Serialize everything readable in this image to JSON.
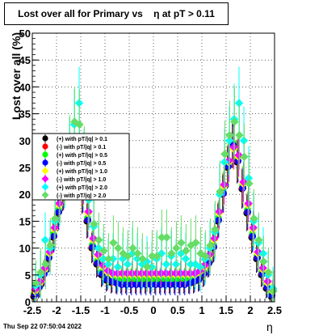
{
  "title": "Lost over all for Primary vs    η at pT > 0.11",
  "footer_date": "Thu Sep 22 07:50:04 2022",
  "chart_data": {
    "type": "scatter",
    "title": "Lost over all for Primary vs    η at pT > 0.11",
    "xlabel": "η",
    "ylabel": "Lost over all (%)",
    "xlim": [
      -2.5,
      2.5
    ],
    "ylim": [
      0,
      50
    ],
    "xticks": [
      "-2.5",
      "-2",
      "-1.5",
      "-1",
      "-0.5",
      "0",
      "0.5",
      "1",
      "1.5",
      "2",
      "2.5"
    ],
    "yticks": [
      "0",
      "5",
      "10",
      "15",
      "20",
      "25",
      "30",
      "35",
      "40",
      "45",
      "50"
    ],
    "grid": true,
    "legend_position": "upper-left",
    "x": [
      -2.45,
      -2.35,
      -2.25,
      -2.15,
      -2.05,
      -1.95,
      -1.85,
      -1.75,
      -1.65,
      -1.55,
      -1.45,
      -1.35,
      -1.25,
      -1.15,
      -1.05,
      -0.95,
      -0.85,
      -0.75,
      -0.65,
      -0.55,
      -0.45,
      -0.35,
      -0.25,
      -0.15,
      -0.05,
      0.05,
      0.15,
      0.25,
      0.35,
      0.45,
      0.55,
      0.65,
      0.75,
      0.85,
      0.95,
      1.05,
      1.15,
      1.25,
      1.35,
      1.45,
      1.55,
      1.65,
      1.75,
      1.85,
      1.95,
      2.05,
      2.15,
      2.25,
      2.35,
      2.45
    ],
    "series": [
      {
        "name": "(+) with pT/|q| > 0.1",
        "color": "#000000",
        "marker": "circle",
        "values": [
          1.0,
          2.5,
          5.0,
          8.0,
          12.0,
          16.5,
          20.5,
          24.0,
          25.5,
          24.5,
          20.0,
          15.0,
          10.0,
          7.0,
          5.0,
          4.0,
          3.6,
          3.6,
          3.6,
          3.6,
          3.6,
          3.6,
          3.6,
          3.6,
          3.6,
          3.6,
          3.6,
          3.6,
          3.6,
          3.6,
          3.6,
          3.6,
          3.6,
          3.6,
          4.0,
          5.0,
          7.0,
          10.0,
          15.0,
          20.0,
          25.0,
          29.0,
          26.0,
          21.0,
          16.5,
          12.0,
          8.0,
          5.0,
          2.5,
          1.0
        ]
      },
      {
        "name": "(-) with pT/|q| > 0.1",
        "color": "#ff0000",
        "marker": "circle",
        "values": [
          1.3,
          2.8,
          5.3,
          8.3,
          12.3,
          16.8,
          20.8,
          24.3,
          25.8,
          24.8,
          20.3,
          15.3,
          10.3,
          7.3,
          5.3,
          4.3,
          3.9,
          3.9,
          3.9,
          3.9,
          3.9,
          3.9,
          3.9,
          3.9,
          3.9,
          3.9,
          3.9,
          3.9,
          3.9,
          3.9,
          3.9,
          3.9,
          3.9,
          3.9,
          4.3,
          5.3,
          7.3,
          10.3,
          15.3,
          20.3,
          25.3,
          29.3,
          26.3,
          21.3,
          16.8,
          12.3,
          8.3,
          5.3,
          2.8,
          1.3
        ]
      },
      {
        "name": "(+) with pT/|q| > 0.5",
        "color": "#00ff00",
        "marker": "circle",
        "values": [
          1.6,
          3.1,
          5.6,
          8.6,
          12.6,
          17.1,
          21.1,
          24.6,
          26.1,
          25.1,
          20.6,
          15.6,
          10.6,
          7.6,
          5.6,
          4.6,
          4.2,
          4.2,
          4.2,
          4.2,
          4.2,
          4.2,
          4.2,
          4.2,
          4.2,
          4.2,
          4.2,
          4.2,
          4.2,
          4.2,
          4.2,
          4.2,
          4.2,
          4.2,
          4.6,
          5.6,
          7.6,
          10.6,
          15.6,
          20.6,
          25.6,
          29.6,
          26.6,
          21.6,
          17.1,
          12.6,
          8.6,
          5.6,
          3.1,
          1.6
        ]
      },
      {
        "name": "(-) with pT/|q| > 0.5",
        "color": "#0000ff",
        "marker": "circle",
        "values": [
          1.2,
          2.7,
          5.2,
          8.2,
          12.2,
          16.7,
          20.7,
          24.2,
          25.7,
          24.7,
          20.2,
          15.2,
          10.2,
          7.2,
          5.2,
          4.2,
          3.8,
          3.4,
          3.2,
          3.2,
          3.2,
          3.2,
          3.2,
          3.2,
          3.2,
          3.2,
          3.2,
          3.2,
          3.2,
          3.2,
          3.2,
          3.2,
          3.4,
          3.8,
          4.2,
          5.2,
          7.2,
          10.2,
          15.2,
          20.2,
          25.2,
          29.2,
          26.2,
          21.2,
          16.7,
          12.2,
          8.2,
          5.2,
          2.7,
          1.2
        ]
      },
      {
        "name": "(+) with pT/|q| > 1.0",
        "color": "#ffff00",
        "marker": "diamond",
        "values": [
          2.0,
          3.5,
          6.0,
          9.0,
          13.5,
          18.0,
          22.0,
          25.5,
          27.0,
          26.0,
          21.5,
          16.5,
          11.5,
          8.5,
          6.5,
          5.5,
          5.0,
          5.0,
          5.0,
          5.0,
          5.0,
          5.0,
          5.0,
          5.0,
          5.0,
          5.0,
          5.0,
          5.0,
          5.0,
          5.0,
          5.0,
          5.0,
          5.0,
          5.0,
          5.5,
          6.5,
          8.5,
          11.5,
          16.5,
          21.5,
          26.0,
          28.5,
          27.0,
          22.0,
          18.0,
          13.5,
          9.0,
          6.0,
          3.5,
          2.0
        ]
      },
      {
        "name": "(-) with pT/|q| > 1.0",
        "color": "#ff00ff",
        "marker": "diamond",
        "values": [
          2.3,
          3.8,
          6.3,
          9.3,
          13.8,
          18.3,
          22.3,
          25.8,
          27.3,
          26.3,
          21.8,
          16.8,
          11.8,
          8.8,
          6.8,
          5.8,
          5.3,
          5.3,
          5.3,
          5.3,
          5.3,
          5.3,
          5.3,
          5.3,
          5.3,
          5.3,
          5.3,
          5.3,
          5.3,
          5.3,
          5.3,
          5.3,
          5.3,
          5.3,
          5.8,
          6.8,
          8.8,
          11.8,
          16.8,
          21.8,
          26.3,
          28.8,
          27.3,
          22.3,
          18.3,
          13.8,
          9.3,
          6.3,
          3.8,
          2.3
        ]
      },
      {
        "name": "(+) with pT/|q| > 2.0",
        "color": "#00ffff",
        "marker": "diamond",
        "values": [
          3.0,
          5.0,
          11.5,
          10.0,
          15.0,
          20.0,
          23.5,
          28.0,
          33.0,
          37.0,
          26.0,
          19.0,
          14.0,
          10.0,
          8.0,
          7.0,
          8.0,
          6.5,
          8.0,
          7.0,
          9.0,
          8.0,
          7.0,
          7.5,
          6.5,
          8.0,
          9.0,
          7.0,
          8.5,
          7.0,
          9.0,
          8.0,
          7.0,
          7.0,
          6.5,
          8.0,
          10.0,
          13.0,
          20.0,
          26.0,
          30.0,
          34.0,
          37.0,
          30.0,
          23.0,
          15.0,
          11.0,
          9.0,
          5.0,
          2.5
        ]
      },
      {
        "name": "(-) with pT/|q| > 2.0",
        "color": "#66dd66",
        "marker": "diamond",
        "values": [
          3.5,
          5.5,
          7.0,
          10.5,
          15.5,
          20.5,
          24.0,
          28.5,
          33.5,
          33.0,
          26.5,
          19.5,
          14.5,
          11.5,
          9.5,
          8.0,
          11.0,
          10.0,
          9.0,
          8.5,
          10.0,
          9.0,
          8.0,
          6.5,
          8.5,
          8.5,
          12.0,
          12.0,
          9.0,
          10.0,
          11.0,
          9.5,
          10.5,
          11.0,
          9.0,
          8.5,
          10.5,
          13.5,
          20.5,
          27.5,
          31.0,
          33.5,
          31.0,
          27.0,
          22.0,
          15.5,
          11.5,
          7.5,
          5.5,
          2.0
        ]
      }
    ]
  }
}
